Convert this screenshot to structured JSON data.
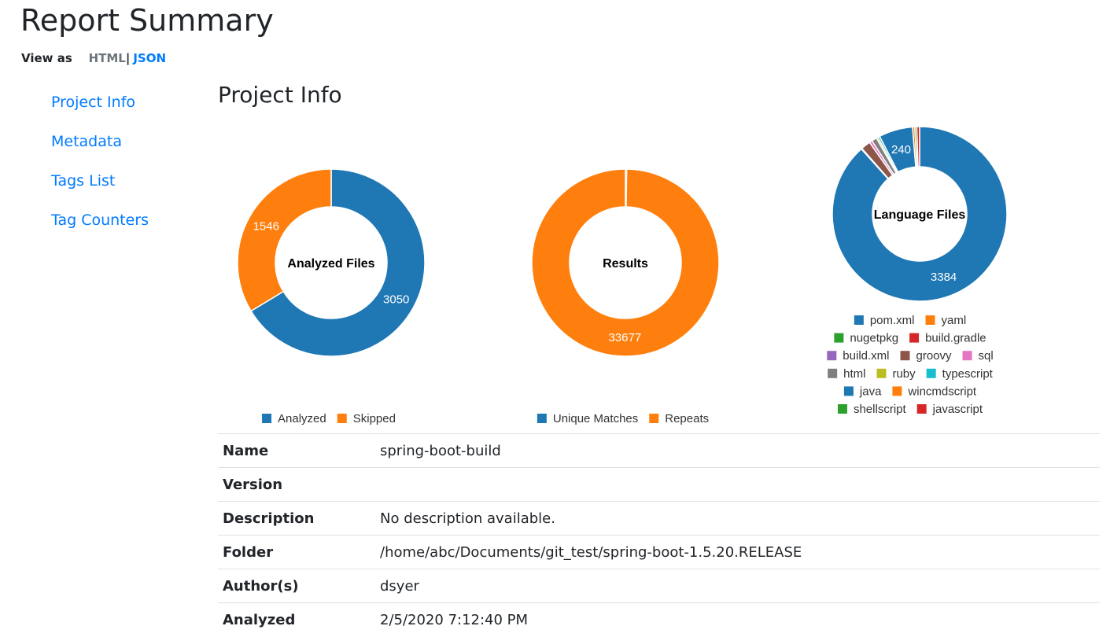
{
  "header": {
    "title": "Report Summary",
    "view_as_label": "View as",
    "html_link": "HTML",
    "separator": "|",
    "json_link": "JSON"
  },
  "sidebar": {
    "items": [
      {
        "label": "Project Info"
      },
      {
        "label": "Metadata"
      },
      {
        "label": "Tags List"
      },
      {
        "label": "Tag Counters"
      }
    ]
  },
  "section_title": "Project Info",
  "chart_data": [
    {
      "type": "pie",
      "title": "Analyzed Files",
      "categories": [
        "Analyzed",
        "Skipped"
      ],
      "values": [
        3050,
        1546
      ],
      "colors": [
        "#1f77b4",
        "#ff7f0e"
      ],
      "legend": "bottom"
    },
    {
      "type": "pie",
      "title": "Results",
      "categories": [
        "Unique Matches",
        "Repeats"
      ],
      "values": [
        75,
        33677
      ],
      "colors": [
        "#1f77b4",
        "#ff7f0e"
      ],
      "legend": "bottom"
    },
    {
      "type": "pie",
      "title": "Language Files",
      "categories": [
        "pom.xml",
        "yaml",
        "nugetpkg",
        "build.gradle",
        "build.xml",
        "groovy",
        "sql",
        "html",
        "ruby",
        "typescript",
        "java",
        "wincmdscript",
        "shellscript",
        "javascript"
      ],
      "values": [
        3384,
        1,
        2,
        1,
        2,
        68,
        20,
        36,
        12,
        14,
        240,
        16,
        14,
        20
      ],
      "colors": [
        "#1f77b4",
        "#ff7f0e",
        "#2ca02c",
        "#d62728",
        "#9467bd",
        "#8c564b",
        "#e377c2",
        "#7f7f7f",
        "#bcbd22",
        "#17becf",
        "#1f77b4",
        "#ff7f0e",
        "#2ca02c",
        "#d62728"
      ],
      "legend": "bottom"
    }
  ],
  "project_info": {
    "rows": [
      {
        "label": "Name",
        "value": "spring-boot-build"
      },
      {
        "label": "Version",
        "value": ""
      },
      {
        "label": "Description",
        "value": "No description available."
      },
      {
        "label": "Folder",
        "value": "/home/abc/Documents/git_test/spring-boot-1.5.20.RELEASE"
      },
      {
        "label": "Author(s)",
        "value": "dsyer"
      },
      {
        "label": "Analyzed",
        "value": "2/5/2020 7:12:40 PM"
      }
    ]
  }
}
